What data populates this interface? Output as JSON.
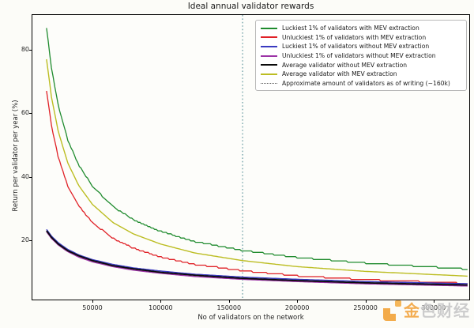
{
  "title": "Ideal annual validator rewards",
  "watermark": {
    "brand_first_char": "金",
    "brand_rest": "色财经",
    "logo": "golden-finance-logo",
    "accent_color": "#f2a33c",
    "gray_color": "#c6c6c6"
  },
  "chart_data": {
    "type": "line",
    "title": "Ideal annual validator rewards",
    "xlabel": "No of validators on the network",
    "ylabel": "Return per validator per year (%)",
    "xlim": [
      5400,
      326600
    ],
    "ylim": [
      1,
      91
    ],
    "grid": false,
    "legend_position": "upper right",
    "x_ticks": [
      50000,
      100000,
      150000,
      200000,
      250000,
      300000
    ],
    "x_tick_labels": [
      "50000",
      "100000",
      "150000",
      "200000",
      "250000",
      "300000"
    ],
    "y_ticks": [
      20,
      40,
      60,
      80
    ],
    "y_tick_labels": [
      "20",
      "40",
      "60",
      "80"
    ],
    "x": [
      16384,
      20000,
      25000,
      32000,
      40000,
      50000,
      65000,
      80000,
      100000,
      125000,
      160000,
      200000,
      250000,
      325000
    ],
    "series": [
      {
        "name": "Luckiest 1% of validators with MEV extraction",
        "color": "#1f8b2e",
        "style": "solid",
        "stepped": true,
        "values": [
          87.0,
          74.2,
          62.3,
          51.5,
          43.6,
          37.0,
          30.6,
          26.5,
          22.8,
          19.6,
          16.8,
          14.6,
          12.8,
          10.9
        ]
      },
      {
        "name": "Unluckiest 1% of validators with MEV extraction",
        "color": "#e02127",
        "style": "solid",
        "stepped": true,
        "values": [
          67.0,
          56.1,
          46.1,
          37.1,
          30.8,
          25.6,
          20.6,
          17.5,
          14.7,
          12.4,
          10.4,
          8.8,
          7.6,
          6.4
        ]
      },
      {
        "name": "Luckiest 1% of validators without MEV extraction",
        "color": "#3a3ac0",
        "style": "solid",
        "stepped": false,
        "values": [
          23.4,
          21.3,
          19.2,
          17.1,
          15.4,
          13.9,
          12.4,
          11.3,
          10.3,
          9.3,
          8.4,
          7.7,
          7.0,
          6.3
        ]
      },
      {
        "name": "Unluckiest 1% of validators without MEV extraction",
        "color": "#9c33a6",
        "style": "solid",
        "stepped": false,
        "values": [
          22.7,
          20.6,
          18.5,
          16.4,
          14.7,
          13.2,
          11.7,
          10.6,
          9.6,
          8.6,
          7.7,
          7.0,
          6.3,
          5.6
        ]
      },
      {
        "name": "Average validator without MEV extraction",
        "color": "#0a0a0a",
        "style": "solid",
        "stepped": false,
        "values": [
          23.0,
          20.9,
          18.8,
          16.7,
          15.1,
          13.6,
          12.0,
          11.0,
          9.9,
          9.0,
          8.0,
          7.3,
          6.6,
          5.9
        ]
      },
      {
        "name": "Average validator with MEV extraction",
        "color": "#bcbd22",
        "style": "solid",
        "stepped": false,
        "values": [
          77.0,
          65.1,
          54.2,
          44.3,
          37.2,
          31.3,
          25.6,
          22.0,
          18.8,
          16.0,
          13.6,
          11.7,
          10.2,
          8.7
        ]
      }
    ],
    "vline": {
      "x": 160000,
      "color": "#63989e",
      "style": "dotted",
      "name": "Approximate amount of validators as of writing (~160k)",
      "legend_swatch_color": "#555555"
    }
  }
}
